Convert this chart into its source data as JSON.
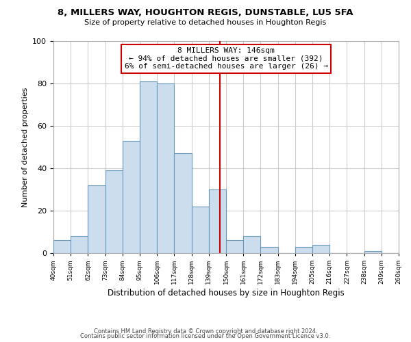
{
  "title": "8, MILLERS WAY, HOUGHTON REGIS, DUNSTABLE, LU5 5FA",
  "subtitle": "Size of property relative to detached houses in Houghton Regis",
  "xlabel": "Distribution of detached houses by size in Houghton Regis",
  "ylabel": "Number of detached properties",
  "bar_color": "#ccdded",
  "bar_edge_color": "#6699bb",
  "bins": [
    40,
    51,
    62,
    73,
    84,
    95,
    106,
    117,
    128,
    139,
    150,
    161,
    172,
    183,
    194,
    205,
    216,
    227,
    238,
    249,
    260
  ],
  "counts": [
    6,
    8,
    32,
    39,
    53,
    81,
    80,
    47,
    22,
    30,
    6,
    8,
    3,
    0,
    3,
    4,
    0,
    0,
    1,
    0
  ],
  "vline_x": 146,
  "vline_color": "#cc0000",
  "ylim": [
    0,
    100
  ],
  "xlim": [
    40,
    260
  ],
  "annotation_title": "8 MILLERS WAY: 146sqm",
  "annotation_line1": "← 94% of detached houses are smaller (392)",
  "annotation_line2": "6% of semi-detached houses are larger (26) →",
  "annotation_box_color": "#ffffff",
  "annotation_box_edge": "#cc0000",
  "footer1": "Contains HM Land Registry data © Crown copyright and database right 2024.",
  "footer2": "Contains public sector information licensed under the Open Government Licence v3.0.",
  "tick_labels": [
    "40sqm",
    "51sqm",
    "62sqm",
    "73sqm",
    "84sqm",
    "95sqm",
    "106sqm",
    "117sqm",
    "128sqm",
    "139sqm",
    "150sqm",
    "161sqm",
    "172sqm",
    "183sqm",
    "194sqm",
    "205sqm",
    "216sqm",
    "227sqm",
    "238sqm",
    "249sqm",
    "260sqm"
  ],
  "background_color": "#ffffff",
  "grid_color": "#cccccc"
}
